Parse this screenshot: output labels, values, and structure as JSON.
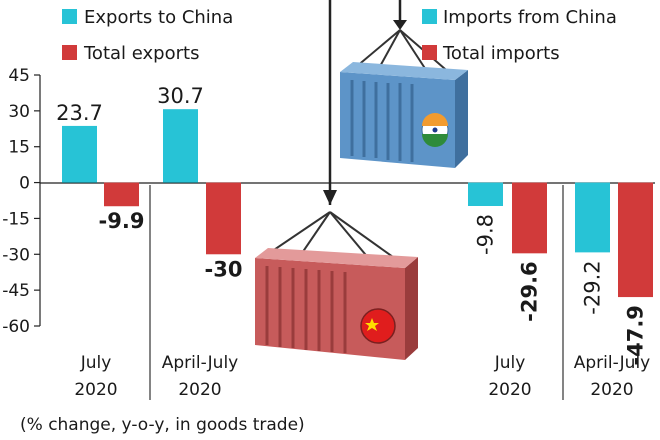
{
  "chart_data": {
    "type": "bar",
    "y_ticks": [
      "45",
      "30",
      "15",
      "0",
      "-15",
      "-30",
      "-45",
      "-60"
    ],
    "ylim": [
      -60,
      45
    ],
    "legend_left": [
      {
        "label": "Exports to China",
        "color": "#27c3d6"
      },
      {
        "label": "Total exports",
        "color": "#d13a3a"
      }
    ],
    "legend_right": [
      {
        "label": "Imports from China",
        "color": "#27c3d6"
      },
      {
        "label": "Total imports",
        "color": "#d13a3a"
      }
    ],
    "groups": [
      {
        "period_line1": "July",
        "period_line2": "2020",
        "bars": [
          {
            "value": 23.7,
            "label": "23.7",
            "color": "#27c3d6",
            "bold": false,
            "rotated": false
          },
          {
            "value": -9.9,
            "label": "-9.9",
            "color": "#d13a3a",
            "bold": true,
            "rotated": false
          }
        ]
      },
      {
        "period_line1": "April-July",
        "period_line2": "2020",
        "bars": [
          {
            "value": 30.7,
            "label": "30.7",
            "color": "#27c3d6",
            "bold": false,
            "rotated": false
          },
          {
            "value": -30,
            "label": "-30",
            "color": "#d13a3a",
            "bold": true,
            "rotated": false
          }
        ]
      },
      {
        "period_line1": "July",
        "period_line2": "2020",
        "bars": [
          {
            "value": -9.8,
            "label": "-9.8",
            "color": "#27c3d6",
            "bold": false,
            "rotated": true
          },
          {
            "value": -29.6,
            "label": "-29.6",
            "color": "#d13a3a",
            "bold": true,
            "rotated": true
          }
        ]
      },
      {
        "period_line1": "April-July",
        "period_line2": "2020",
        "bars": [
          {
            "value": -29.2,
            "label": "-29.2",
            "color": "#27c3d6",
            "bold": false,
            "rotated": true
          },
          {
            "value": -47.9,
            "label": "-47.9",
            "color": "#d13a3a",
            "bold": true,
            "rotated": true
          }
        ]
      }
    ],
    "footnote": "(% change, y-o-y, in goods trade)",
    "grid": false
  },
  "illustration": {
    "top_container_icon": "blue-shipping-container-india-flag-icon",
    "bottom_container_icon": "red-shipping-container-china-flag-icon"
  }
}
